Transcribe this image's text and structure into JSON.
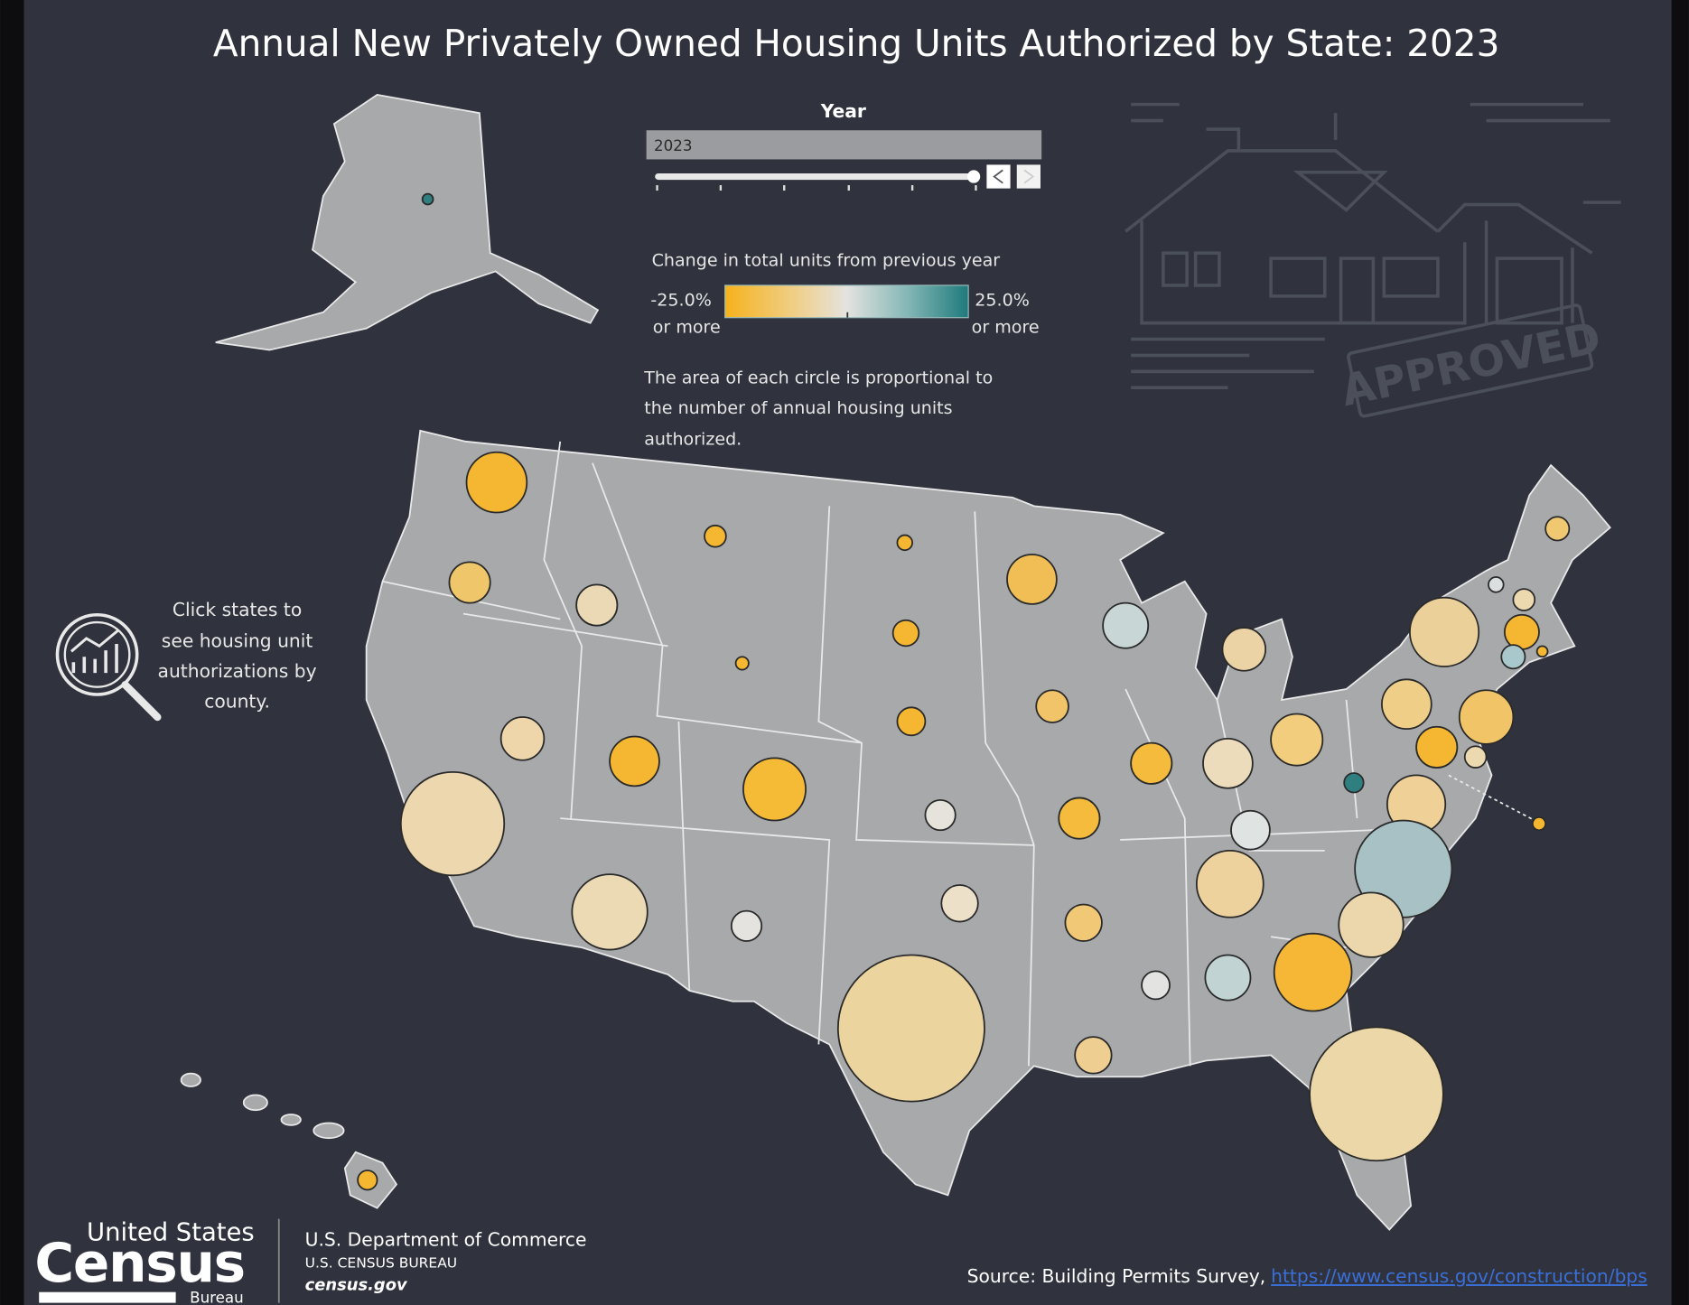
{
  "title": "Annual New Privately Owned Housing Units Authorized by State: 2023",
  "year_filter": {
    "label": "Year",
    "selected": "2023",
    "prev_icon": "chevron-left-icon",
    "next_icon": "chevron-right-icon",
    "slider_position": "end"
  },
  "legend": {
    "title": "Change in total units from previous year",
    "min_label": "-25.0%",
    "min_sub": "or more",
    "max_label": "25.0%",
    "max_sub": "or more",
    "colors": {
      "low": "#f6b21c",
      "mid": "#e3e3df",
      "high": "#1f7a7c"
    },
    "size_note": [
      "The area of each circle is proportional to",
      "the number of annual housing units",
      "authorized."
    ]
  },
  "hint": {
    "icon": "magnifier-chart-icon",
    "lines": [
      "Click states to",
      "see housing unit",
      "authorizations by",
      "county."
    ]
  },
  "decoration": {
    "stamp": "APPROVED"
  },
  "footer": {
    "logo": {
      "line1": "United States",
      "line2": "Census",
      "line3": "Bureau"
    },
    "dept": "U.S. Department of Commerce",
    "bureau": "U.S. CENSUS BUREAU",
    "site": "census.gov",
    "source_label": "Source: Building Permits Survey,",
    "source_link": "https://www.census.gov/construction/bps"
  },
  "colors": {
    "background": "#30333d",
    "land": "#a7a9ab",
    "border": "#e8e8e8"
  }
}
